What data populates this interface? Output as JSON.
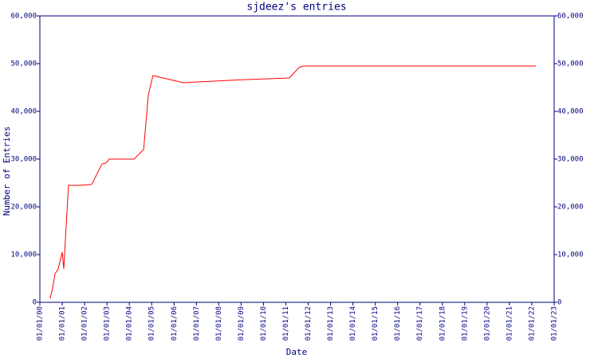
{
  "chart_data": {
    "type": "line",
    "title": "sjdeez's entries",
    "x_label": "Date",
    "y_label": "Number of Entries",
    "x": [
      2000.46,
      2000.57,
      2000.68,
      2000.82,
      2001.0,
      2001.07,
      2001.14,
      2001.28,
      2001.78,
      2002.32,
      2002.78,
      2002.96,
      2003.1,
      2004.21,
      2004.64,
      2004.85,
      2005.06,
      2006.42,
      2006.78,
      2008.92,
      2011.16,
      2011.59,
      2011.77,
      2022.18
    ],
    "series": [
      {
        "name": "sjdeez",
        "color": "#ff0000",
        "values": [
          800,
          3000,
          6000,
          7000,
          10500,
          7000,
          13000,
          24500,
          24500,
          24700,
          29000,
          29200,
          30000,
          30000,
          32000,
          43500,
          47500,
          46000,
          46100,
          46600,
          47000,
          49200,
          49500,
          49500
        ]
      }
    ],
    "xlim": [
      2000,
      2023
    ],
    "xticks": [
      {
        "value": 2000,
        "label": "01/01/00"
      },
      {
        "value": 2001,
        "label": "01/01/01"
      },
      {
        "value": 2002,
        "label": "01/01/02"
      },
      {
        "value": 2003,
        "label": "01/01/03"
      },
      {
        "value": 2004,
        "label": "01/01/04"
      },
      {
        "value": 2005,
        "label": "01/01/05"
      },
      {
        "value": 2006,
        "label": "01/01/06"
      },
      {
        "value": 2007,
        "label": "01/01/07"
      },
      {
        "value": 2008,
        "label": "01/01/08"
      },
      {
        "value": 2009,
        "label": "01/01/09"
      },
      {
        "value": 2010,
        "label": "01/01/10"
      },
      {
        "value": 2011,
        "label": "01/01/11"
      },
      {
        "value": 2012,
        "label": "01/01/12"
      },
      {
        "value": 2013,
        "label": "01/01/13"
      },
      {
        "value": 2014,
        "label": "01/01/14"
      },
      {
        "value": 2015,
        "label": "01/01/15"
      },
      {
        "value": 2016,
        "label": "01/01/16"
      },
      {
        "value": 2017,
        "label": "01/01/17"
      },
      {
        "value": 2018,
        "label": "01/01/18"
      },
      {
        "value": 2019,
        "label": "01/01/19"
      },
      {
        "value": 2020,
        "label": "01/01/20"
      },
      {
        "value": 2021,
        "label": "01/01/21"
      },
      {
        "value": 2022,
        "label": "01/01/22"
      },
      {
        "value": 2023,
        "label": "01/01/23"
      }
    ],
    "ylim": [
      0,
      60000
    ],
    "yticks": [
      0,
      {
        "value": 10000,
        "label": "10,000"
      },
      {
        "value": 20000,
        "label": "20,000"
      },
      {
        "value": 30000,
        "label": "30,000"
      },
      {
        "value": 40000,
        "label": "40,000"
      },
      {
        "value": 50000,
        "label": "50,000"
      },
      {
        "value": 60000,
        "label": "60,000"
      }
    ],
    "y2lim": [
      0,
      60000
    ],
    "y2ticks": [
      0,
      {
        "value": 10000,
        "label": "10,000"
      },
      {
        "value": 20000,
        "label": "20,000"
      },
      {
        "value": 30000,
        "label": "30,000"
      },
      {
        "value": 40000,
        "label": "40,000"
      },
      {
        "value": 50000,
        "label": "50,000"
      },
      {
        "value": 60000,
        "label": "60,000"
      }
    ],
    "grid": false
  }
}
